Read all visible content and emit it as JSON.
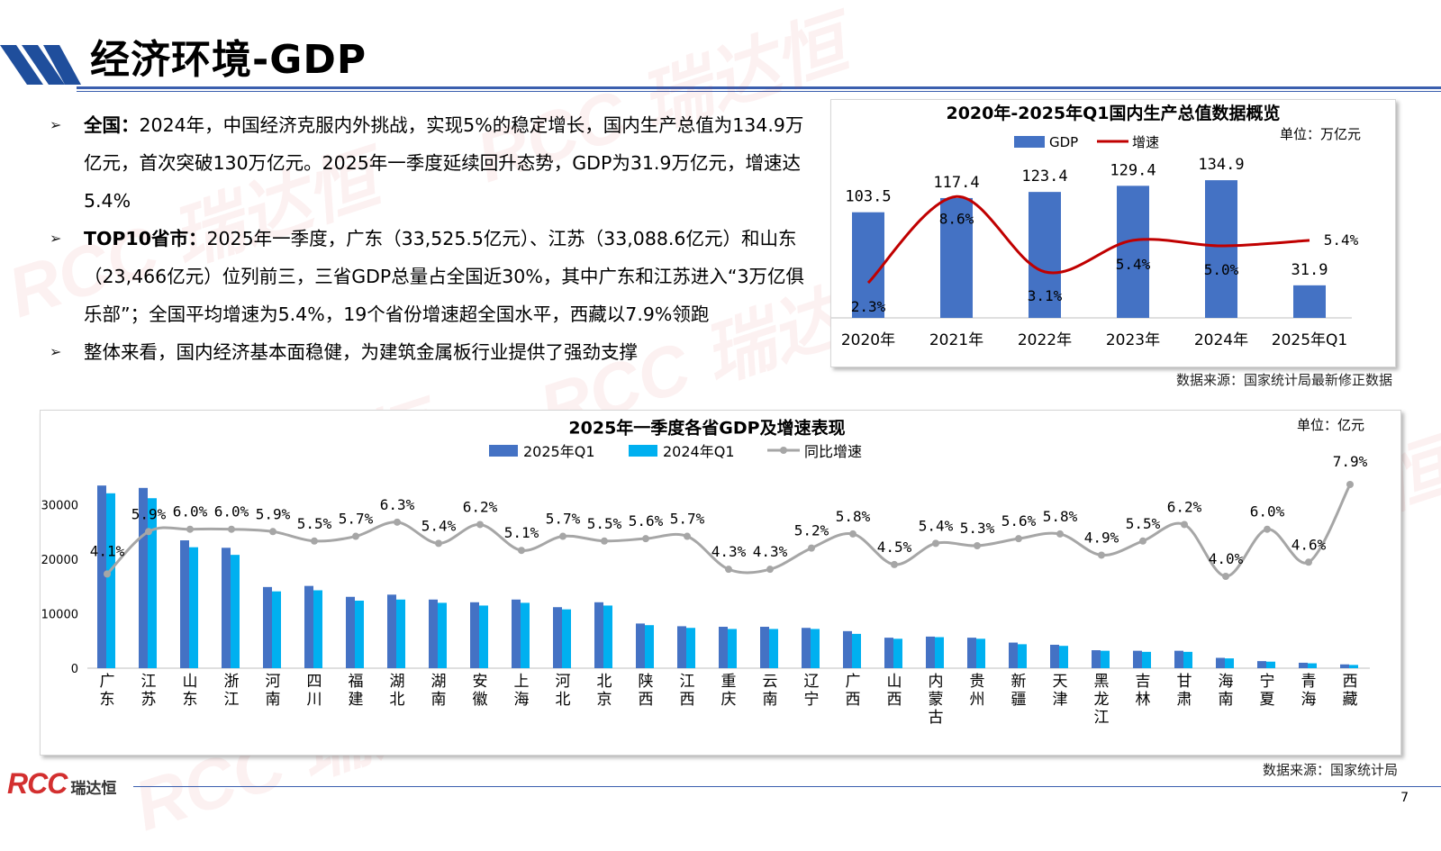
{
  "title": "经济环境-GDP",
  "bullets": [
    {
      "label": "全国：",
      "text": "2024年，中国经济克服内外挑战，实现5%的稳定增长，国内生产总值为134.9万亿元，首次突破130万亿元。2025年一季度延续回升态势，GDP为31.9万亿元，增速达5.4%"
    },
    {
      "label": "TOP10省市：",
      "text": "2025年一季度，广东（33,525.5亿元）、江苏（33,088.6亿元）和山东（23,466亿元）位列前三，三省GDP总量占全国近30%，其中广东和江苏进入“3万亿俱乐部”；全国平均增速为5.4%，19个省份增速超全国水平，西藏以7.9%领跑"
    },
    {
      "label": "",
      "text": "整体来看，国内经济基本面稳健，为建筑金属板行业提供了强劲支撑"
    }
  ],
  "chart1_unit": "单位：万亿元",
  "chart1_source": "数据来源：国家统计局最新修正数据",
  "chart2_unit": "单位：亿元",
  "chart2_source": "数据来源：国家统计局",
  "footer": {
    "logo": "RCC",
    "logo_cn": "瑞达恒",
    "page": "7"
  },
  "watermark": "RCC 瑞达恒",
  "colors": {
    "gdp_bar": "#4472c4",
    "q1_2025": "#4472c4",
    "q1_2024": "#00b0f0",
    "growth_line": "#c00000",
    "yoy_line": "#a6a6a6",
    "accent": "#3b5fae"
  },
  "chart_data": [
    {
      "type": "bar",
      "title": "2020年-2025年Q1国内生产总值数据概览",
      "categories": [
        "2020年",
        "2021年",
        "2022年",
        "2023年",
        "2024年",
        "2025年Q1"
      ],
      "series": [
        {
          "name": "GDP",
          "type": "bar",
          "values": [
            103.5,
            117.4,
            123.4,
            129.4,
            134.9,
            31.9
          ]
        },
        {
          "name": "增速",
          "type": "line",
          "values": [
            2.3,
            8.6,
            3.1,
            5.4,
            5.0,
            5.4
          ],
          "labels": [
            "2.3%",
            "8.6%",
            "3.1%",
            "5.4%",
            "5.0%",
            "5.4%"
          ]
        }
      ],
      "legend": "top",
      "grid": false
    },
    {
      "type": "bar",
      "title": "2025年一季度各省GDP及增速表现",
      "categories": [
        "广东",
        "江苏",
        "山东",
        "浙江",
        "河南",
        "四川",
        "福建",
        "湖北",
        "湖南",
        "安徽",
        "上海",
        "河北",
        "北京",
        "陕西",
        "江西",
        "重庆",
        "云南",
        "辽宁",
        "广西",
        "山西",
        "内蒙古",
        "贵州",
        "新疆",
        "天津",
        "黑龙江",
        "吉林",
        "甘肃",
        "海南",
        "宁夏",
        "青海",
        "西藏"
      ],
      "series": [
        {
          "name": "2025年Q1",
          "type": "bar",
          "values": [
            33525.5,
            33088.6,
            23466,
            22100,
            14900,
            15100,
            13100,
            13500,
            12600,
            12100,
            12600,
            11200,
            12100,
            8200,
            7700,
            7600,
            7600,
            7400,
            6800,
            5600,
            5800,
            5600,
            4700,
            4300,
            3300,
            3200,
            3200,
            1900,
            1300,
            1000,
            700
          ]
        },
        {
          "name": "2024年Q1",
          "type": "bar",
          "values": [
            32100,
            31200,
            22200,
            20800,
            14100,
            14300,
            12400,
            12600,
            12000,
            11500,
            12000,
            10800,
            11500,
            7900,
            7400,
            7200,
            7200,
            7200,
            6300,
            5400,
            5700,
            5400,
            4400,
            4100,
            3200,
            3000,
            3000,
            1800,
            1200,
            900,
            600
          ]
        },
        {
          "name": "同比增速",
          "type": "line",
          "values": [
            4.1,
            5.9,
            6.0,
            6.0,
            5.9,
            5.5,
            5.7,
            6.3,
            5.4,
            6.2,
            5.1,
            5.7,
            5.5,
            5.6,
            5.7,
            4.3,
            4.3,
            5.2,
            5.8,
            4.5,
            5.4,
            5.3,
            5.6,
            5.8,
            4.9,
            5.5,
            6.2,
            4.0,
            6.0,
            4.6,
            7.9
          ],
          "labels": [
            "4.1%",
            "5.9%",
            "6.0%",
            "6.0%",
            "5.9%",
            "5.5%",
            "5.7%",
            "6.3%",
            "5.4%",
            "6.2%",
            "5.1%",
            "5.7%",
            "5.5%",
            "5.6%",
            "5.7%",
            "4.3%",
            "4.3%",
            "5.2%",
            "5.8%",
            "4.5%",
            "5.4%",
            "5.3%",
            "5.6%",
            "5.8%",
            "4.9%",
            "5.5%",
            "6.2%",
            "4.0%",
            "6.0%",
            "4.6%",
            "7.9%"
          ]
        }
      ],
      "y_ticks": [
        "0",
        "10000",
        "20000",
        "30000"
      ],
      "ylim": [
        0,
        35000
      ],
      "legend": "top",
      "grid": false
    }
  ]
}
